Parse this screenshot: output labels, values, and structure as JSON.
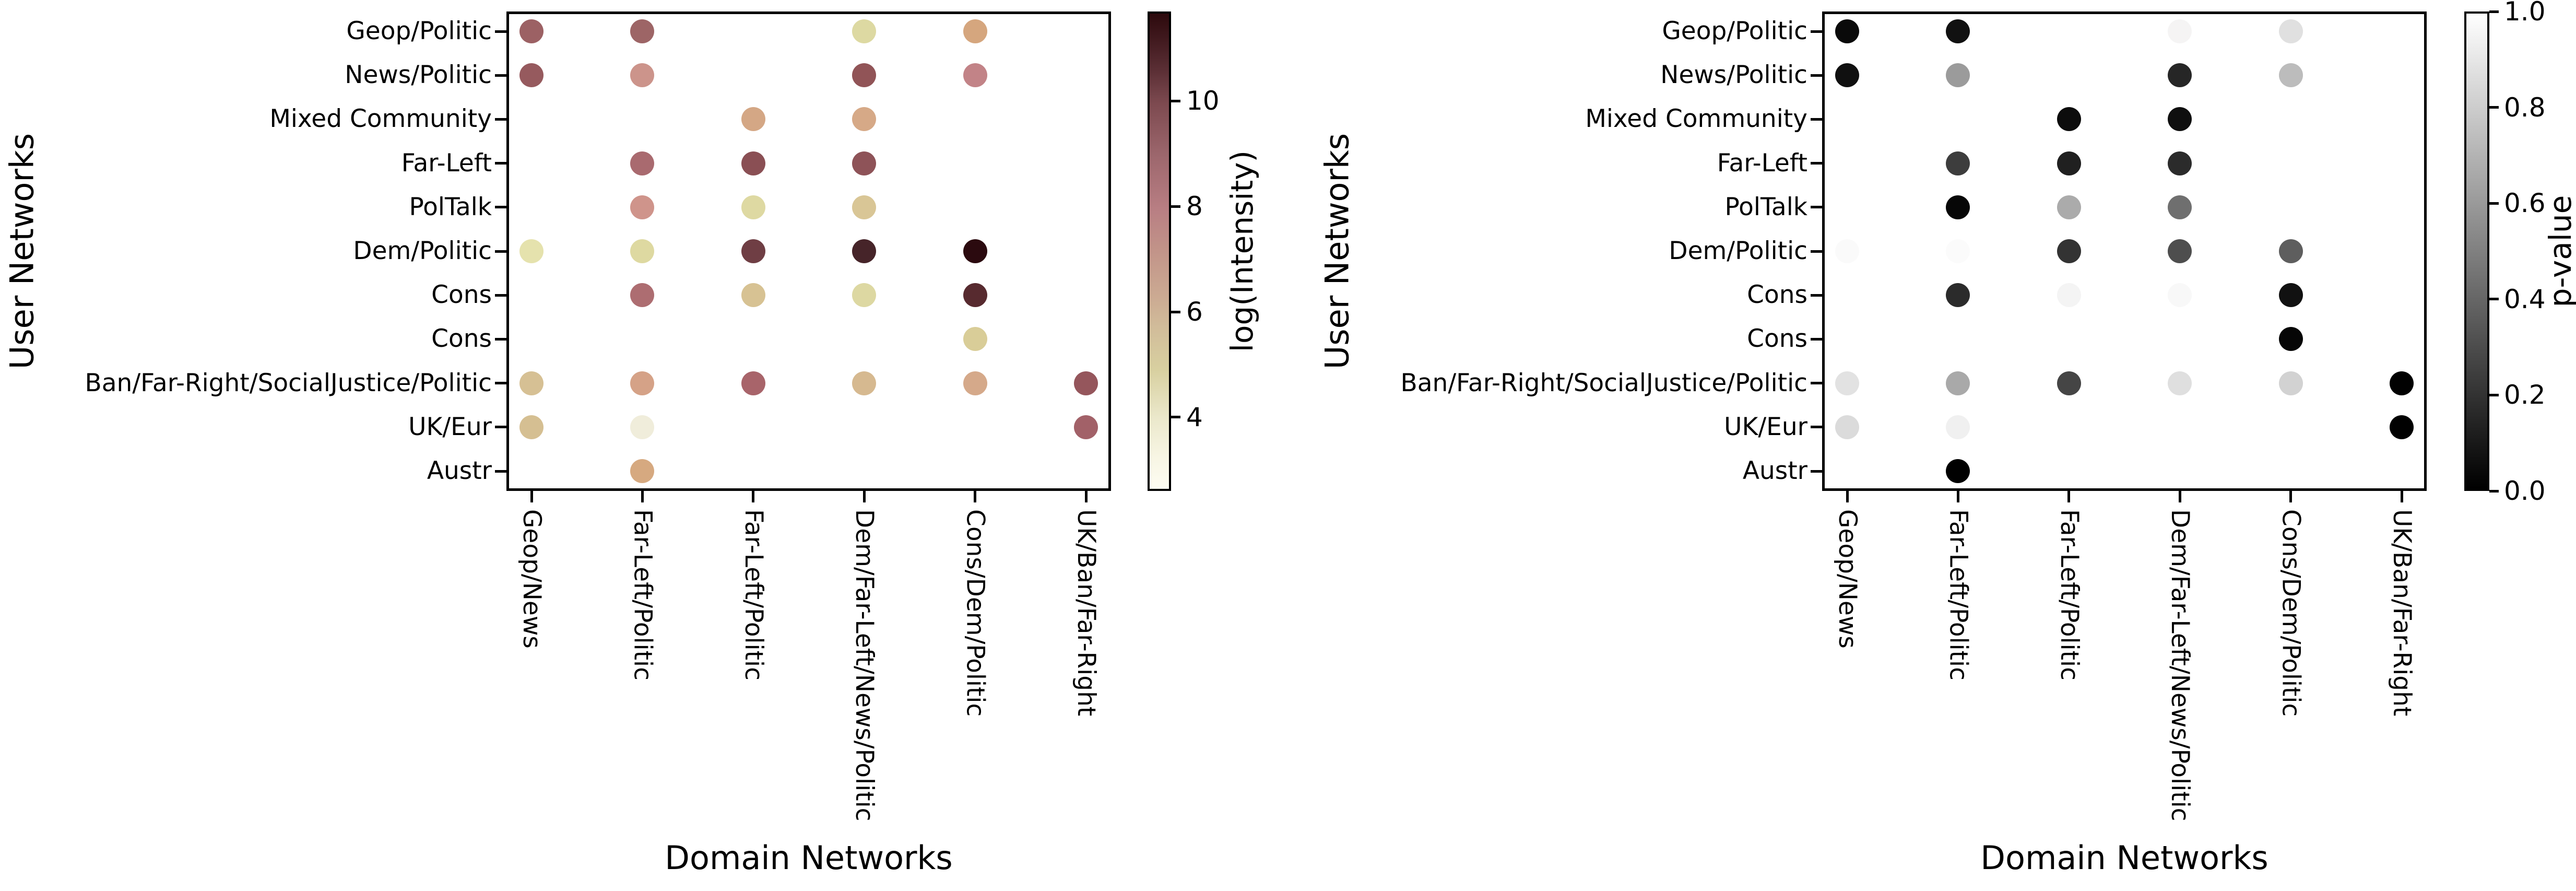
{
  "figure": {
    "x_axis_title": "Domain Networks",
    "y_axis_title": "User Networks",
    "background": "#ffffff"
  },
  "chart_data": [
    {
      "type": "scatter",
      "panel": "intensity",
      "xlabel": "Domain Networks",
      "ylabel": "User Networks",
      "grid": false,
      "x_categories": [
        "Geop/News",
        "Far-Left/Politic",
        "Far-Left/Politic",
        "Dem/Far-Left/News/Politic",
        "Cons/Dem/Politic",
        "UK/Ban/Far-Right"
      ],
      "y_categories": [
        "Geop/Politic",
        "News/Politic",
        "Mixed Community",
        "Far-Left",
        "PolTalk",
        "Dem/Politic",
        "Cons",
        "Cons",
        "Ban/Far-Right/SocialJustice/Politic",
        "UK/Eur",
        "Austr"
      ],
      "colorbar": {
        "label": "log(Intensity)",
        "colormap": "pink_r",
        "vmax_top": 11.7,
        "vmin_bottom": 2.6,
        "ticks": [
          {
            "label": "10",
            "value": 10
          },
          {
            "label": "8",
            "value": 8
          },
          {
            "label": "6",
            "value": 6
          },
          {
            "label": "4",
            "value": 4
          }
        ],
        "gradient_stops": [
          {
            "color": "#2d0a0d",
            "pos": 0
          },
          {
            "color": "#3f181d",
            "pos": 5
          },
          {
            "color": "#5b2f35",
            "pos": 12
          },
          {
            "color": "#7d4a50",
            "pos": 19
          },
          {
            "color": "#9d676d",
            "pos": 30
          },
          {
            "color": "#b87e83",
            "pos": 41
          },
          {
            "color": "#c29489",
            "pos": 50
          },
          {
            "color": "#ccab93",
            "pos": 60
          },
          {
            "color": "#d1bc9a",
            "pos": 66
          },
          {
            "color": "#d8d0a0",
            "pos": 75
          },
          {
            "color": "#ebe8cb",
            "pos": 85
          },
          {
            "color": "#f7f5e3",
            "pos": 93
          },
          {
            "color": "#fdfcf2",
            "pos": 100
          }
        ]
      },
      "points": [
        {
          "row": 0,
          "col": 0,
          "value": 9.4,
          "color": "#9c6164"
        },
        {
          "row": 0,
          "col": 1,
          "value": 9.3,
          "color": "#9d6566"
        },
        {
          "row": 0,
          "col": 3,
          "value": 5.2,
          "color": "#ddd9a2"
        },
        {
          "row": 0,
          "col": 4,
          "value": 7.0,
          "color": "#d5a67e"
        },
        {
          "row": 1,
          "col": 0,
          "value": 9.6,
          "color": "#965a5e"
        },
        {
          "row": 1,
          "col": 1,
          "value": 8.1,
          "color": "#cc948b"
        },
        {
          "row": 1,
          "col": 3,
          "value": 9.7,
          "color": "#915457"
        },
        {
          "row": 1,
          "col": 4,
          "value": 8.5,
          "color": "#c28387"
        },
        {
          "row": 2,
          "col": 2,
          "value": 7.0,
          "color": "#d4a785"
        },
        {
          "row": 2,
          "col": 3,
          "value": 6.9,
          "color": "#d6a987"
        },
        {
          "row": 3,
          "col": 1,
          "value": 9.2,
          "color": "#a96a6f"
        },
        {
          "row": 3,
          "col": 2,
          "value": 9.8,
          "color": "#8a4f54"
        },
        {
          "row": 3,
          "col": 3,
          "value": 9.7,
          "color": "#8e5358"
        },
        {
          "row": 4,
          "col": 1,
          "value": 8.1,
          "color": "#cf948b"
        },
        {
          "row": 4,
          "col": 2,
          "value": 5.1,
          "color": "#ded9a2"
        },
        {
          "row": 4,
          "col": 3,
          "value": 6.0,
          "color": "#d9c696"
        },
        {
          "row": 5,
          "col": 0,
          "value": 4.9,
          "color": "#e5e2ad"
        },
        {
          "row": 5,
          "col": 1,
          "value": 5.1,
          "color": "#ded9a1"
        },
        {
          "row": 5,
          "col": 2,
          "value": 10.3,
          "color": "#6f3e44"
        },
        {
          "row": 5,
          "col": 3,
          "value": 10.9,
          "color": "#462429"
        },
        {
          "row": 5,
          "col": 4,
          "value": 11.4,
          "color": "#2b0a0f"
        },
        {
          "row": 6,
          "col": 1,
          "value": 9.1,
          "color": "#ad6d71"
        },
        {
          "row": 6,
          "col": 2,
          "value": 6.2,
          "color": "#d7c293"
        },
        {
          "row": 6,
          "col": 3,
          "value": 5.2,
          "color": "#ddd8a2"
        },
        {
          "row": 6,
          "col": 4,
          "value": 10.7,
          "color": "#572a2f"
        },
        {
          "row": 7,
          "col": 4,
          "value": 5.7,
          "color": "#d9cd98"
        },
        {
          "row": 8,
          "col": 0,
          "value": 6.3,
          "color": "#d6c094"
        },
        {
          "row": 8,
          "col": 1,
          "value": 7.1,
          "color": "#d5a287"
        },
        {
          "row": 8,
          "col": 2,
          "value": 9.3,
          "color": "#a8646a"
        },
        {
          "row": 8,
          "col": 3,
          "value": 6.5,
          "color": "#d6b990"
        },
        {
          "row": 8,
          "col": 4,
          "value": 6.9,
          "color": "#d5a98a"
        },
        {
          "row": 8,
          "col": 5,
          "value": 9.6,
          "color": "#95565c"
        },
        {
          "row": 9,
          "col": 0,
          "value": 6.3,
          "color": "#d5bf92"
        },
        {
          "row": 9,
          "col": 1,
          "value": 3.7,
          "color": "#f0eddb"
        },
        {
          "row": 9,
          "col": 5,
          "value": 9.3,
          "color": "#a26168"
        },
        {
          "row": 10,
          "col": 1,
          "value": 6.9,
          "color": "#d6a980"
        }
      ]
    },
    {
      "type": "scatter",
      "panel": "pvalue",
      "xlabel": "Domain Networks",
      "ylabel": "User Networks",
      "grid": false,
      "x_categories": [
        "Geop/News",
        "Far-Left/Politic",
        "Far-Left/Politic",
        "Dem/Far-Left/News/Politic",
        "Cons/Dem/Politic",
        "UK/Ban/Far-Right"
      ],
      "y_categories": [
        "Geop/Politic",
        "News/Politic",
        "Mixed Community",
        "Far-Left",
        "PolTalk",
        "Dem/Politic",
        "Cons",
        "Cons",
        "Ban/Far-Right/SocialJustice/Politic",
        "UK/Eur",
        "Austr"
      ],
      "colorbar": {
        "label": "p-value",
        "colormap": "gray",
        "vmax_top": 1.0,
        "vmin_bottom": 0.0,
        "ticks": [
          {
            "label": "1.0",
            "value": 1.0
          },
          {
            "label": "0.8",
            "value": 0.8
          },
          {
            "label": "0.6",
            "value": 0.6
          },
          {
            "label": "0.4",
            "value": 0.4
          },
          {
            "label": "0.2",
            "value": 0.2
          },
          {
            "label": "0.0",
            "value": 0.0
          }
        ],
        "gradient_stops": [
          {
            "color": "#ffffff",
            "pos": 0
          },
          {
            "color": "#808080",
            "pos": 50
          },
          {
            "color": "#000000",
            "pos": 100
          }
        ]
      },
      "points": [
        {
          "row": 0,
          "col": 0,
          "value": 0.03,
          "color": "#0a0a0a"
        },
        {
          "row": 0,
          "col": 1,
          "value": 0.05,
          "color": "#111111"
        },
        {
          "row": 0,
          "col": 3,
          "value": 0.96,
          "color": "#f5f4f4"
        },
        {
          "row": 0,
          "col": 4,
          "value": 0.88,
          "color": "#e0e0e0"
        },
        {
          "row": 1,
          "col": 0,
          "value": 0.05,
          "color": "#101010"
        },
        {
          "row": 1,
          "col": 1,
          "value": 0.61,
          "color": "#9b9b9b"
        },
        {
          "row": 1,
          "col": 3,
          "value": 0.15,
          "color": "#262626"
        },
        {
          "row": 1,
          "col": 4,
          "value": 0.74,
          "color": "#bcbcbc"
        },
        {
          "row": 2,
          "col": 2,
          "value": 0.04,
          "color": "#0c0c0c"
        },
        {
          "row": 2,
          "col": 3,
          "value": 0.05,
          "color": "#0f0f0f"
        },
        {
          "row": 3,
          "col": 1,
          "value": 0.24,
          "color": "#3d3d3d"
        },
        {
          "row": 3,
          "col": 2,
          "value": 0.13,
          "color": "#202020"
        },
        {
          "row": 3,
          "col": 3,
          "value": 0.17,
          "color": "#2b2b2b"
        },
        {
          "row": 4,
          "col": 1,
          "value": 0.02,
          "color": "#070707"
        },
        {
          "row": 4,
          "col": 2,
          "value": 0.67,
          "color": "#ababab"
        },
        {
          "row": 4,
          "col": 3,
          "value": 0.44,
          "color": "#6f6f6f"
        },
        {
          "row": 5,
          "col": 0,
          "value": 0.98,
          "color": "#fafafa"
        },
        {
          "row": 5,
          "col": 1,
          "value": 0.98,
          "color": "#fbfbfb"
        },
        {
          "row": 5,
          "col": 2,
          "value": 0.2,
          "color": "#333333"
        },
        {
          "row": 5,
          "col": 3,
          "value": 0.31,
          "color": "#4e4e4e"
        },
        {
          "row": 5,
          "col": 4,
          "value": 0.37,
          "color": "#5e5e5e"
        },
        {
          "row": 6,
          "col": 1,
          "value": 0.17,
          "color": "#2b2b2b"
        },
        {
          "row": 6,
          "col": 2,
          "value": 0.96,
          "color": "#f4f4f4"
        },
        {
          "row": 6,
          "col": 3,
          "value": 0.97,
          "color": "#f8f8f8"
        },
        {
          "row": 6,
          "col": 4,
          "value": 0.07,
          "color": "#111111"
        },
        {
          "row": 7,
          "col": 4,
          "value": 0.02,
          "color": "#060606"
        },
        {
          "row": 8,
          "col": 0,
          "value": 0.89,
          "color": "#e2e2e2"
        },
        {
          "row": 8,
          "col": 1,
          "value": 0.66,
          "color": "#a9a9a9"
        },
        {
          "row": 8,
          "col": 2,
          "value": 0.27,
          "color": "#454545"
        },
        {
          "row": 8,
          "col": 3,
          "value": 0.87,
          "color": "#dfdfdf"
        },
        {
          "row": 8,
          "col": 4,
          "value": 0.82,
          "color": "#d2d2d2"
        },
        {
          "row": 8,
          "col": 5,
          "value": 0.0,
          "color": "#010101"
        },
        {
          "row": 9,
          "col": 0,
          "value": 0.86,
          "color": "#dbdbdb"
        },
        {
          "row": 9,
          "col": 1,
          "value": 0.94,
          "color": "#f0f0f0"
        },
        {
          "row": 9,
          "col": 5,
          "value": 0.0,
          "color": "#010101"
        },
        {
          "row": 10,
          "col": 1,
          "value": 0.0,
          "color": "#010101"
        }
      ]
    }
  ]
}
